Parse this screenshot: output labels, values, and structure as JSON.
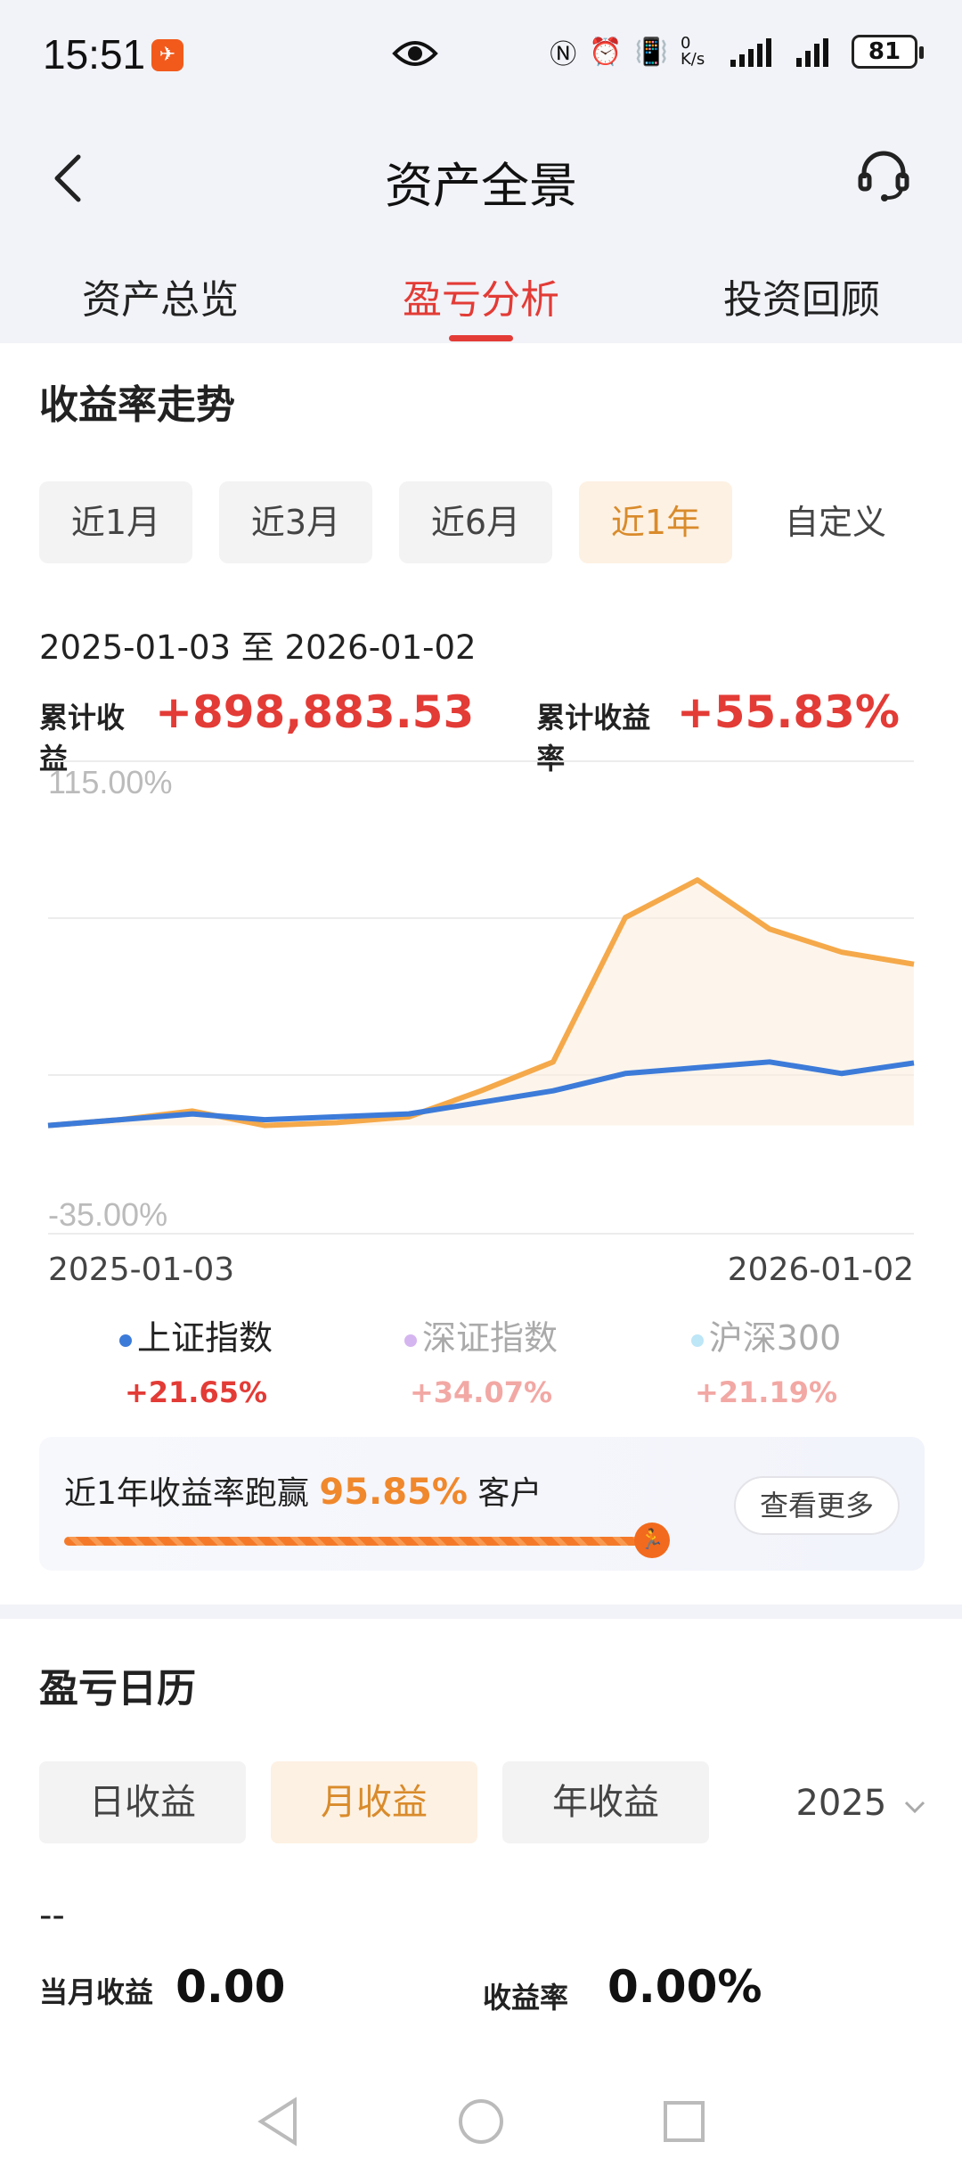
{
  "status_bar": {
    "time": "15:51",
    "net_speed": "0 K/s",
    "battery": "81"
  },
  "header": {
    "title": "资产全景"
  },
  "tabs": [
    {
      "label": "资产总览",
      "active": false
    },
    {
      "label": "盈亏分析",
      "active": true
    },
    {
      "label": "投资回顾",
      "active": false
    }
  ],
  "trend": {
    "title": "收益率走势",
    "periods": [
      "近1月",
      "近3月",
      "近6月",
      "近1年",
      "自定义"
    ],
    "active_period": "近1年",
    "date_range": "2025-01-03 至 2026-01-02",
    "cum_profit_label": "累计收益",
    "cum_profit_value": "+898,883.53",
    "cum_rate_label": "累计收益率",
    "cum_rate_value": "+55.83%"
  },
  "chart_data": {
    "type": "line",
    "ylim": [
      -35,
      115
    ],
    "y_tick_labels": [
      "115.00%",
      "-35.00%"
    ],
    "x_tick_labels": [
      "2025-01-03",
      "2026-01-02"
    ],
    "grid": true,
    "x": [
      "2025-01",
      "2025-02",
      "2025-03",
      "2025-04",
      "2025-05",
      "2025-06",
      "2025-07",
      "2025-08",
      "2025-09",
      "2025-10",
      "2025-11",
      "2025-12",
      "2026-01"
    ],
    "series": [
      {
        "color": "#f5a94a",
        "values": [
          0,
          2,
          5,
          0,
          1,
          3,
          12,
          22,
          72,
          85,
          68,
          60,
          55.83
        ]
      },
      {
        "name": "上证指数",
        "color": "#3d7bd9",
        "values": [
          0,
          2,
          4,
          2,
          3,
          4,
          8,
          12,
          18,
          20,
          22,
          18,
          21.65
        ]
      }
    ]
  },
  "legend": [
    {
      "name": "上证指数",
      "value": "+21.65%",
      "dot_color": "#3d7bd9",
      "name_color": "#222222",
      "value_color": "#e33b36"
    },
    {
      "name": "深证指数",
      "value": "+34.07%",
      "dot_color": "#d5b5ef",
      "name_color": "#aaaaaa",
      "value_color": "#f2a8a4"
    },
    {
      "name": "沪深300",
      "value": "+21.19%",
      "dot_color": "#bde6f7",
      "name_color": "#aaaaaa",
      "value_color": "#f2a8a4"
    }
  ],
  "beat": {
    "prefix": "近1年收益率跑赢",
    "percent": "95.85%",
    "suffix": "客户",
    "more_label": "查看更多",
    "progress": 0.9585
  },
  "calendar": {
    "title": "盈亏日历",
    "modes": [
      "日收益",
      "月收益",
      "年收益"
    ],
    "active_mode": "月收益",
    "year": "2025",
    "dash": "--",
    "month_profit_label": "当月收益",
    "month_profit_value": "0.00",
    "rate_label": "收益率",
    "rate_value": "0.00%"
  }
}
